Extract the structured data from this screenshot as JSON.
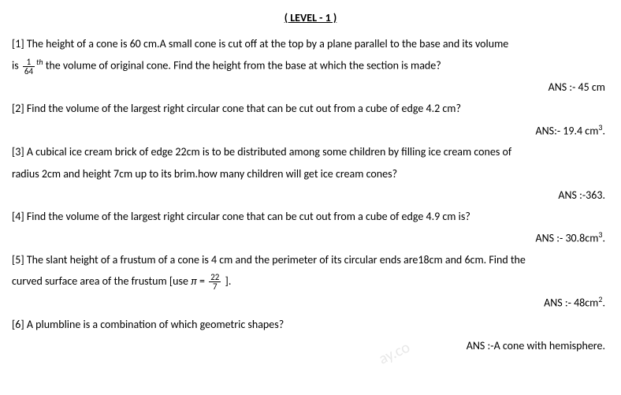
{
  "title": "( LEVEL - 1 )",
  "questions": [
    {
      "num": "[1]",
      "text_pre": "The height of a cone is 60 cm.A small cone is cut off at the top by a plane parallel to the base and its volume",
      "text_line2_pre": "is",
      "frac_num": "1",
      "frac_den": "64",
      "sup": "th",
      "text_line2_post": " the volume of original cone. Find the height from the base at which the section is made?",
      "answer": "ANS :- 45 cm"
    },
    {
      "num": "[2]",
      "text": "Find the volume of the largest right circular cone that can be cut out from a cube of edge 4.2 cm?",
      "answer": "ANS:- 19.4 cm",
      "answer_sup": "3",
      "answer_post": "."
    },
    {
      "num": "[3]",
      "text": "A cubical ice cream brick of edge 22cm is to be distributed among some children by filling ice cream cones of",
      "text_line2": "radius 2cm and height 7cm up to its brim.how many children will get ice cream cones?",
      "answer": "ANS :-363."
    },
    {
      "num": "[4]",
      "text": "Find the volume of the largest right circular cone that can be cut out from a cube of edge 4.9 cm is?",
      "answer": "ANS :- 30.8cm",
      "answer_sup": "3",
      "answer_post": "."
    },
    {
      "num": "[5]",
      "text": "The slant height of a frustum of a cone is 4 cm and the perimeter of its circular ends are18cm and 6cm. Find the",
      "text_line2_pre": "curved surface area of the frustum [use ",
      "pi": "π",
      "eq": " = ",
      "frac_num": "22",
      "frac_den": "7",
      "text_line2_post": " ].",
      "answer": "ANS :- 48cm",
      "answer_sup": "2",
      "answer_post": "."
    },
    {
      "num": "[6]",
      "text": "A plumbline is a combination of which geometric shapes?",
      "answer": "ANS :-A cone with hemisphere."
    }
  ],
  "watermark": "ay.co"
}
